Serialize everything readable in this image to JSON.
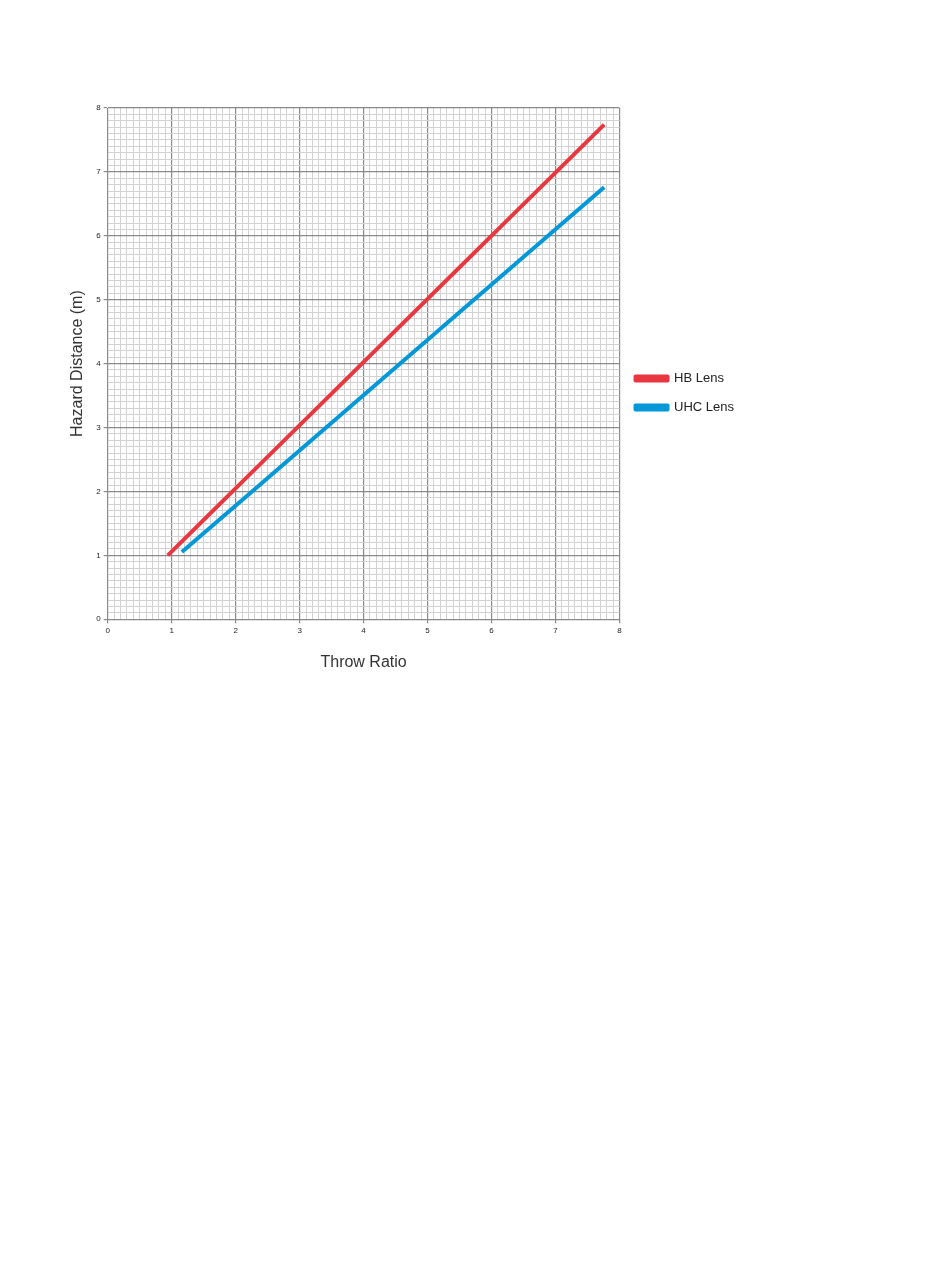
{
  "chart_data": {
    "type": "line",
    "xlabel": "Throw Ratio",
    "ylabel": "Hazard Distance (m)",
    "series": [
      {
        "name": "HB Lens",
        "color": "#e8373e",
        "x": [
          0.94,
          7.76
        ],
        "values": [
          1.0,
          7.74
        ]
      },
      {
        "name": "UHC Lens",
        "color": "#0098d8",
        "x": [
          1.16,
          7.76
        ],
        "values": [
          1.05,
          6.76
        ]
      }
    ],
    "xlim": [
      0,
      8
    ],
    "ylim": [
      0,
      8
    ],
    "xticks": [
      0,
      {
        "value": 0.1,
        "label": null
      },
      {
        "value": 0.2,
        "label": null
      },
      {
        "value": 0.3,
        "label": null
      },
      {
        "value": 0.4,
        "label": null
      },
      {
        "value": 0.5,
        "label": null
      },
      {
        "value": 0.6,
        "label": null
      },
      {
        "value": 0.7,
        "label": null
      },
      {
        "value": 0.8,
        "label": null
      },
      {
        "value": 0.9,
        "label": null
      },
      1,
      {
        "value": 1.1,
        "label": null
      },
      {
        "value": 1.2,
        "label": null
      },
      {
        "value": 1.3,
        "label": null
      },
      {
        "value": 1.4,
        "label": null
      },
      {
        "value": 1.5,
        "label": null
      },
      {
        "value": 1.6,
        "label": null
      },
      {
        "value": 1.7,
        "label": null
      },
      {
        "value": 1.8,
        "label": null
      },
      {
        "value": 1.9,
        "label": null
      },
      2,
      {
        "value": 2.1,
        "label": null
      },
      {
        "value": 2.2,
        "label": null
      },
      {
        "value": 2.3,
        "label": null
      },
      {
        "value": 2.4,
        "label": null
      },
      {
        "value": 2.5,
        "label": null
      },
      {
        "value": 2.6,
        "label": null
      },
      {
        "value": 2.7,
        "label": null
      },
      {
        "value": 2.8,
        "label": null
      },
      {
        "value": 2.9,
        "label": null
      },
      3,
      {
        "value": 3.1,
        "label": null
      },
      {
        "value": 3.2,
        "label": null
      },
      {
        "value": 3.3,
        "label": null
      },
      {
        "value": 3.4,
        "label": null
      },
      {
        "value": 3.5,
        "label": null
      },
      {
        "value": 3.6,
        "label": null
      },
      {
        "value": 3.7,
        "label": null
      },
      {
        "value": 3.8,
        "label": null
      },
      {
        "value": 3.9,
        "label": null
      },
      4,
      {
        "value": 4.1,
        "label": null
      },
      {
        "value": 4.2,
        "label": null
      },
      {
        "value": 4.3,
        "label": null
      },
      {
        "value": 4.4,
        "label": null
      },
      {
        "value": 4.5,
        "label": null
      },
      {
        "value": 4.6,
        "label": null
      },
      {
        "value": 4.7,
        "label": null
      },
      {
        "value": 4.8,
        "label": null
      },
      {
        "value": 4.9,
        "label": null
      },
      5,
      {
        "value": 5.1,
        "label": null
      },
      {
        "value": 5.2,
        "label": null
      },
      {
        "value": 5.3,
        "label": null
      },
      {
        "value": 5.4,
        "label": null
      },
      {
        "value": 5.5,
        "label": null
      },
      {
        "value": 5.6,
        "label": null
      },
      {
        "value": 5.7,
        "label": null
      },
      {
        "value": 5.8,
        "label": null
      },
      {
        "value": 5.9,
        "label": null
      },
      6,
      {
        "value": 6.1,
        "label": null
      },
      {
        "value": 6.2,
        "label": null
      },
      {
        "value": 6.3,
        "label": null
      },
      {
        "value": 6.4,
        "label": null
      },
      {
        "value": 6.5,
        "label": null
      },
      {
        "value": 6.6,
        "label": null
      },
      {
        "value": 6.7,
        "label": null
      },
      {
        "value": 6.8,
        "label": null
      },
      {
        "value": 6.9,
        "label": null
      },
      7,
      {
        "value": 7.1,
        "label": null
      },
      {
        "value": 7.2,
        "label": null
      },
      {
        "value": 7.3,
        "label": null
      },
      {
        "value": 7.4,
        "label": null
      },
      {
        "value": 7.5,
        "label": null
      },
      {
        "value": 7.6,
        "label": null
      },
      {
        "value": 7.7,
        "label": null
      },
      {
        "value": 7.8,
        "label": null
      },
      {
        "value": 7.9,
        "label": null
      },
      8
    ],
    "yticks": [
      0,
      {
        "value": 0.1,
        "label": null
      },
      {
        "value": 0.2,
        "label": null
      },
      {
        "value": 0.3,
        "label": null
      },
      {
        "value": 0.4,
        "label": null
      },
      {
        "value": 0.5,
        "label": null
      },
      {
        "value": 0.6,
        "label": null
      },
      {
        "value": 0.7,
        "label": null
      },
      {
        "value": 0.8,
        "label": null
      },
      {
        "value": 0.9,
        "label": null
      },
      1,
      {
        "value": 1.1,
        "label": null
      },
      {
        "value": 1.2,
        "label": null
      },
      {
        "value": 1.3,
        "label": null
      },
      {
        "value": 1.4,
        "label": null
      },
      {
        "value": 1.5,
        "label": null
      },
      {
        "value": 1.6,
        "label": null
      },
      {
        "value": 1.7,
        "label": null
      },
      {
        "value": 1.8,
        "label": null
      },
      {
        "value": 1.9,
        "label": null
      },
      2,
      {
        "value": 2.1,
        "label": null
      },
      {
        "value": 2.2,
        "label": null
      },
      {
        "value": 2.3,
        "label": null
      },
      {
        "value": 2.4,
        "label": null
      },
      {
        "value": 2.5,
        "label": null
      },
      {
        "value": 2.6,
        "label": null
      },
      {
        "value": 2.7,
        "label": null
      },
      {
        "value": 2.8,
        "label": null
      },
      {
        "value": 2.9,
        "label": null
      },
      3,
      {
        "value": 3.1,
        "label": null
      },
      {
        "value": 3.2,
        "label": null
      },
      {
        "value": 3.3,
        "label": null
      },
      {
        "value": 3.4,
        "label": null
      },
      {
        "value": 3.5,
        "label": null
      },
      {
        "value": 3.6,
        "label": null
      },
      {
        "value": 3.7,
        "label": null
      },
      {
        "value": 3.8,
        "label": null
      },
      {
        "value": 3.9,
        "label": null
      },
      4,
      {
        "value": 4.1,
        "label": null
      },
      {
        "value": 4.2,
        "label": null
      },
      {
        "value": 4.3,
        "label": null
      },
      {
        "value": 4.4,
        "label": null
      },
      {
        "value": 4.5,
        "label": null
      },
      {
        "value": 4.6,
        "label": null
      },
      {
        "value": 4.7,
        "label": null
      },
      {
        "value": 4.8,
        "label": null
      },
      {
        "value": 4.9,
        "label": null
      },
      5,
      {
        "value": 5.1,
        "label": null
      },
      {
        "value": 5.2,
        "label": null
      },
      {
        "value": 5.3,
        "label": null
      },
      {
        "value": 5.4,
        "label": null
      },
      {
        "value": 5.5,
        "label": null
      },
      {
        "value": 5.6,
        "label": null
      },
      {
        "value": 5.7,
        "label": null
      },
      {
        "value": 5.8,
        "label": null
      },
      {
        "value": 5.9,
        "label": null
      },
      6,
      {
        "value": 6.1,
        "label": null
      },
      {
        "value": 6.2,
        "label": null
      },
      {
        "value": 6.3,
        "label": null
      },
      {
        "value": 6.4,
        "label": null
      },
      {
        "value": 6.5,
        "label": null
      },
      {
        "value": 6.6,
        "label": null
      },
      {
        "value": 6.7,
        "label": null
      },
      {
        "value": 6.8,
        "label": null
      },
      {
        "value": 6.9,
        "label": null
      },
      7,
      {
        "value": 7.1,
        "label": null
      },
      {
        "value": 7.2,
        "label": null
      },
      {
        "value": 7.3,
        "label": null
      },
      {
        "value": 7.4,
        "label": null
      },
      {
        "value": 7.5,
        "label": null
      },
      {
        "value": 7.6,
        "label": null
      },
      {
        "value": 7.7,
        "label": null
      },
      {
        "value": 7.8,
        "label": null
      },
      {
        "value": 7.9,
        "label": null
      },
      8
    ],
    "grid": true,
    "legend": "right",
    "marker": "none",
    "line_style": "solid"
  }
}
